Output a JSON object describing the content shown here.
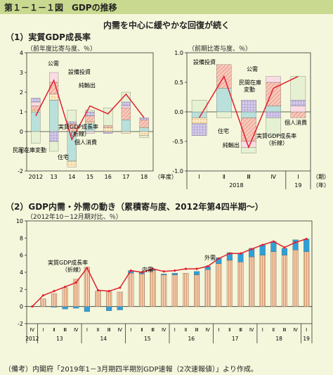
{
  "header": {
    "figure_title": "第１－１－１図　GDPの推移",
    "subtitle": "内需を中心に緩やかな回復が続く"
  },
  "colors": {
    "background": "#f5f7dc",
    "header_bar": "#c9d98f",
    "consumption": "#b9e0da",
    "housing": "#fbe9c7",
    "equipment": "#f7c9bd",
    "public": "#fadce4",
    "inventory": "#d5cbe8",
    "net_exports": "#e5f1d2",
    "domestic": "#f4c9a8",
    "external": "#2f9fd8",
    "gdp_line": "#e0202f"
  },
  "chart_data": [
    {
      "id": "annual",
      "title": "（1）実質GDP成長率",
      "unit": "（前年度比寄与度、％）",
      "type": "bar",
      "stacked": true,
      "categories": [
        "2012",
        "13",
        "14",
        "15",
        "16",
        "17",
        "18"
      ],
      "x_unit": "（年度）",
      "ylim": [
        -2,
        4
      ],
      "yticks": [
        -2,
        -1,
        0,
        1,
        2,
        3,
        4
      ],
      "series": [
        {
          "key": "consumption",
          "values": [
            1.0,
            1.6,
            -1.5,
            0.4,
            0.0,
            0.6,
            0.2
          ]
        },
        {
          "key": "housing",
          "values": [
            0.1,
            0.3,
            -0.3,
            0.1,
            0.2,
            -0.1,
            -0.2
          ]
        },
        {
          "key": "equipment",
          "values": [
            0.2,
            0.6,
            0.4,
            0.3,
            0.1,
            0.6,
            0.4
          ]
        },
        {
          "key": "public",
          "values": [
            0.2,
            0.5,
            0.0,
            -0.1,
            0.0,
            0.1,
            0.0
          ]
        },
        {
          "key": "inventory",
          "values": [
            0.2,
            -0.5,
            0.1,
            0.2,
            -0.1,
            0.2,
            0.1
          ]
        },
        {
          "key": "net_exports",
          "values": [
            -0.6,
            -0.5,
            0.6,
            0.1,
            0.9,
            0.5,
            -0.1
          ]
        }
      ],
      "gdp_line": [
        0.8,
        2.6,
        -0.4,
        1.3,
        0.9,
        1.9,
        0.7
      ],
      "annotations": [
        "公需",
        "設備投資",
        "純輸出",
        "実質GDP成長率",
        "（折線）",
        "個人消費",
        "民間在庫変動",
        "住宅"
      ]
    },
    {
      "id": "quarterly",
      "unit": "（前期比寄与度、％）",
      "type": "bar",
      "stacked": true,
      "categories": [
        "Ⅰ",
        "Ⅱ",
        "Ⅲ",
        "Ⅳ",
        "Ⅰ"
      ],
      "year_labels": [
        "2018",
        "19"
      ],
      "x_unit": "（期）",
      "x_unit2": "（年）",
      "ylim": [
        -1,
        1
      ],
      "yticks": [
        "-1.0",
        "-0.5",
        "0.0",
        "0.5",
        "1.0"
      ],
      "series": [
        {
          "key": "consumption",
          "values": [
            -0.1,
            0.4,
            -0.1,
            0.1,
            0.0
          ]
        },
        {
          "key": "housing",
          "values": [
            -0.1,
            0.0,
            0.0,
            0.0,
            0.0
          ]
        },
        {
          "key": "equipment",
          "values": [
            0.0,
            0.4,
            -0.4,
            0.4,
            -0.1
          ]
        },
        {
          "key": "public",
          "values": [
            0.0,
            0.0,
            -0.1,
            0.1,
            0.1
          ]
        },
        {
          "key": "inventory",
          "values": [
            -0.2,
            0.0,
            0.2,
            -0.1,
            0.1
          ]
        },
        {
          "key": "net_exports",
          "values": [
            0.2,
            -0.1,
            -0.1,
            -0.3,
            0.4
          ]
        }
      ],
      "gdp_line": [
        -0.1,
        0.6,
        -0.6,
        0.4,
        0.6
      ],
      "annotations": [
        "設備投資",
        "公需",
        "民間在庫",
        "変動",
        "純輸出",
        "住宅",
        "実質GDP成長率",
        "（折線）",
        "個人消費"
      ]
    },
    {
      "id": "cumulative",
      "title": "（2）GDP内需・外需の動き（累積寄与度、2012年第4四半期～）",
      "unit": "（2012年10－12月期対比、％）",
      "type": "bar",
      "stacked": true,
      "quarters": [
        "Ⅳ",
        "Ⅰ",
        "Ⅱ",
        "Ⅲ",
        "Ⅳ",
        "Ⅰ",
        "Ⅱ",
        "Ⅲ",
        "Ⅳ",
        "Ⅰ",
        "Ⅱ",
        "Ⅲ",
        "Ⅳ",
        "Ⅰ",
        "Ⅱ",
        "Ⅲ",
        "Ⅳ",
        "Ⅰ",
        "Ⅱ",
        "Ⅲ",
        "Ⅳ",
        "Ⅰ",
        "Ⅱ",
        "Ⅲ",
        "Ⅳ",
        "Ⅰ"
      ],
      "year_labels": [
        "2012",
        "13",
        "14",
        "15",
        "16",
        "17",
        "18",
        "19"
      ],
      "ylim": [
        -2,
        10
      ],
      "yticks": [
        -2,
        0,
        2,
        4,
        6,
        8,
        10
      ],
      "series": [
        {
          "key": "domestic",
          "values": [
            0.0,
            0.9,
            1.5,
            2.2,
            3.2,
            4.6,
            1.8,
            1.8,
            1.7,
            3.9,
            3.8,
            4.2,
            3.7,
            3.7,
            3.9,
            3.7,
            4.3,
            5.0,
            5.4,
            5.2,
            5.8,
            6.0,
            6.4,
            6.0,
            6.6,
            6.4
          ]
        },
        {
          "key": "external",
          "values": [
            0.0,
            0.0,
            -0.1,
            -0.3,
            -0.2,
            -0.6,
            0.0,
            -0.5,
            -0.4,
            0.3,
            0.2,
            0.2,
            0.1,
            0.2,
            0.0,
            0.4,
            0.4,
            0.7,
            0.9,
            1.0,
            1.0,
            1.2,
            1.2,
            0.8,
            1.2,
            1.5
          ]
        }
      ],
      "gdp_line": [
        0.0,
        1.3,
        1.8,
        2.3,
        2.8,
        4.5,
        1.9,
        1.8,
        2.2,
        4.2,
        4.0,
        4.4,
        4.1,
        4.2,
        4.4,
        4.4,
        4.7,
        5.6,
        6.2,
        6.2,
        6.7,
        7.2,
        7.6,
        6.9,
        7.5,
        7.9
      ],
      "annotations": [
        "実質GDP成長率",
        "（折線）",
        "内需",
        "外需"
      ]
    }
  ],
  "footnote": "（備考）内閣府「2019年1－3月期四半期別GDP速報（2次速報値）」より作成。"
}
